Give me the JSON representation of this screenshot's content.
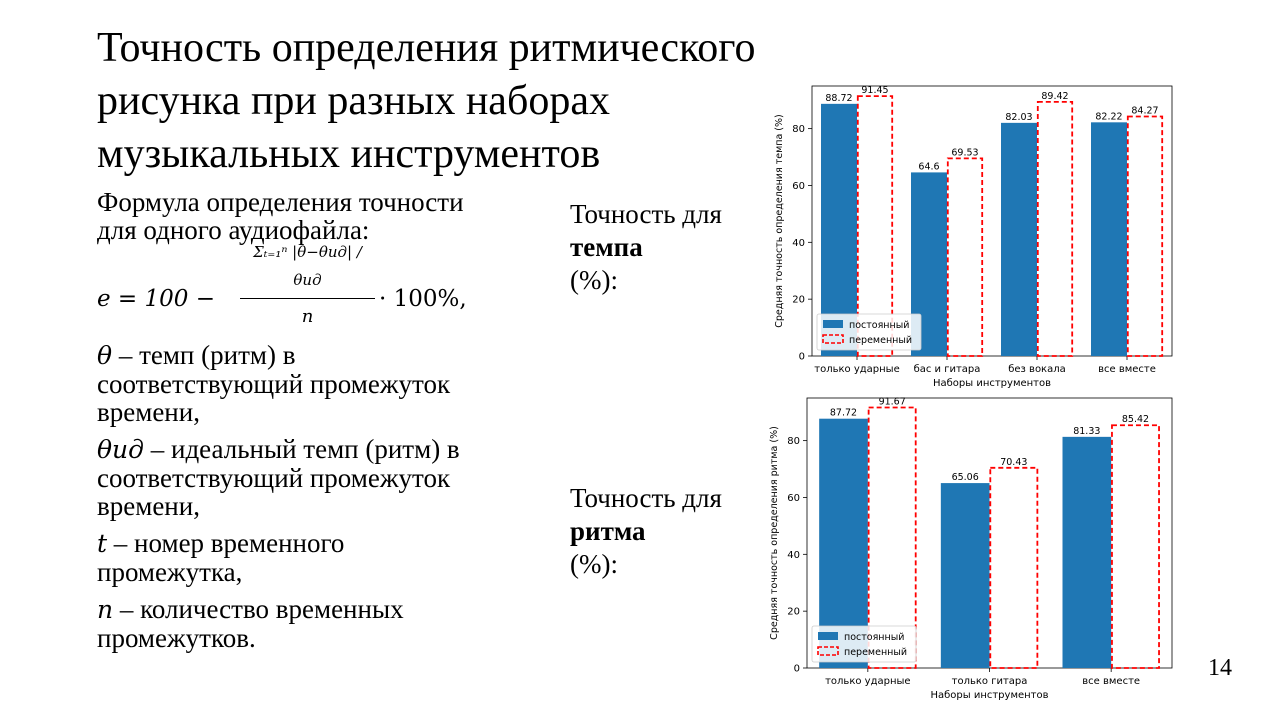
{
  "slide": {
    "title_lines": [
      "Точность определения ритмического",
      "рисунка при разных наборах",
      "музыкальных инструментов"
    ],
    "formula_intro_lines": [
      "Формула определения точности",
      "для одного аудиофайла:"
    ],
    "formula": {
      "lhs": "e = 100 −",
      "numerator": "Σₜ₌₁ⁿ |θ−θид| / θид",
      "denominator": "n",
      "rhs": "· 100%,"
    },
    "definitions": [
      {
        "symbol": "θ",
        "lines": [
          " – темп (ритм) в",
          "соответствующий промежуток",
          "времени,"
        ]
      },
      {
        "symbol": "θид",
        "lines": [
          " – идеальный темп (ритм) в",
          "соответствующий промежуток",
          "времени,"
        ]
      },
      {
        "symbol": "t",
        "lines": [
          " – номер временного",
          "промежутка,"
        ]
      },
      {
        "symbol": "n",
        "lines": [
          " – количество временных",
          "промежутков."
        ]
      }
    ],
    "caption_tempo": {
      "line1": "Точность для",
      "bold": "темпа",
      "rest": " (%):"
    },
    "caption_rhythm": {
      "line1": "Точность для",
      "bold": "ритма",
      "rest": " (%):"
    },
    "page_number": "14"
  },
  "chart_data": [
    {
      "type": "bar",
      "categories": [
        "только ударные",
        "бас и гитара",
        "без вокала",
        "все вместе"
      ],
      "series": [
        {
          "name": "постоянный",
          "values": [
            88.72,
            64.6,
            82.03,
            82.22
          ],
          "style": "filled",
          "color": "#1f77b4"
        },
        {
          "name": "переменный",
          "values": [
            91.45,
            69.53,
            89.42,
            84.27
          ],
          "style": "dashed-outline",
          "color": "#ff0000"
        }
      ],
      "data_labels": [
        [
          "88.72",
          "64.6",
          "82.03",
          "82.22"
        ],
        [
          "91.45",
          "69.53",
          "89.42",
          "84.27"
        ]
      ],
      "xlabel": "Наборы инструментов",
      "ylabel": "Средняя точность определения темпа (%)",
      "ylim": [
        0,
        95
      ],
      "yticks": [
        0,
        20,
        40,
        60,
        80
      ],
      "grid": false,
      "legend": "lower-left"
    },
    {
      "type": "bar",
      "categories": [
        "только ударные",
        "только гитара",
        "все вместе"
      ],
      "series": [
        {
          "name": "постоянный",
          "values": [
            87.72,
            65.06,
            81.33
          ],
          "style": "filled",
          "color": "#1f77b4"
        },
        {
          "name": "переменный",
          "values": [
            91.67,
            70.43,
            85.42
          ],
          "style": "dashed-outline",
          "color": "#ff0000"
        }
      ],
      "data_labels": [
        [
          "87.72",
          "65.06",
          "81.33"
        ],
        [
          "91.67",
          "70.43",
          "85.42"
        ]
      ],
      "xlabel": "Наборы инструментов",
      "ylabel": "Средняя точность определения ритма (%)",
      "ylim": [
        0,
        95
      ],
      "yticks": [
        0,
        20,
        40,
        60,
        80
      ],
      "grid": false,
      "legend": "lower-left"
    }
  ]
}
